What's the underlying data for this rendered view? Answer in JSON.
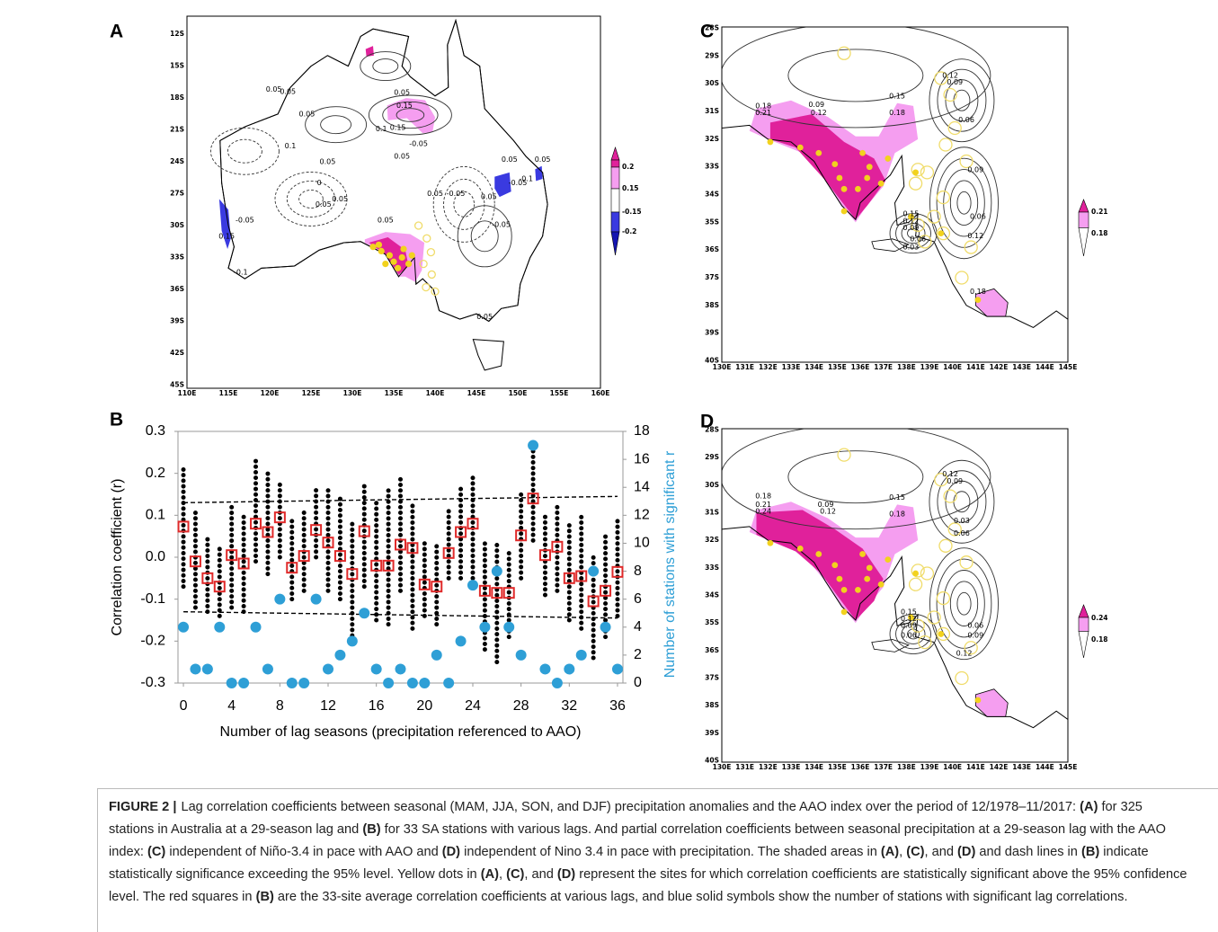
{
  "panel_labels": [
    "A",
    "B",
    "C",
    "D"
  ],
  "map_a": {
    "lat_labels": [
      "12S",
      "15S",
      "18S",
      "21S",
      "24S",
      "27S",
      "30S",
      "33S",
      "36S",
      "39S",
      "42S",
      "45S"
    ],
    "lon_labels": [
      "110E",
      "115E",
      "120E",
      "125E",
      "130E",
      "135E",
      "140E",
      "145E",
      "150E",
      "155E",
      "160E"
    ],
    "colorbar_labels": [
      "0.2",
      "0.15",
      "-0.15",
      "-0.2"
    ],
    "contour_labels": [
      "0.05",
      "0.05",
      "0.05",
      "0.1",
      "0.05",
      "-0.05",
      "0.05",
      "0.05",
      "0.15",
      "0.15",
      "0.1",
      "-0.05",
      "0.05",
      "0.05",
      "-0.05",
      "0.05",
      "0.05",
      "-0.05",
      "-0.1",
      "0.05",
      "0.05",
      "-0.05",
      "0.05",
      "0.15",
      "-0.1",
      "0",
      "0.05"
    ]
  },
  "map_c": {
    "lat_labels": [
      "28S",
      "29S",
      "30S",
      "31S",
      "32S",
      "33S",
      "34S",
      "35S",
      "36S",
      "37S",
      "38S",
      "39S",
      "40S"
    ],
    "lon_labels": [
      "130E",
      "131E",
      "132E",
      "133E",
      "134E",
      "135E",
      "136E",
      "137E",
      "138E",
      "139E",
      "140E",
      "141E",
      "142E",
      "143E",
      "144E",
      "145E"
    ],
    "colorbar_labels": [
      "0.21",
      "0.18"
    ],
    "contour_labels": [
      "0.12",
      "0.09",
      "0.18",
      "0.21",
      "0.09",
      "0.12",
      "0.15",
      "0.18",
      "0.06",
      "0.09",
      "0.15",
      "0.12",
      "0.09",
      "0.06",
      "0.03",
      "0.06",
      "0.12",
      "0.18"
    ]
  },
  "map_d": {
    "lat_labels": [
      "28S",
      "29S",
      "30S",
      "31S",
      "32S",
      "33S",
      "34S",
      "35S",
      "36S",
      "37S",
      "38S",
      "39S",
      "40S"
    ],
    "lon_labels": [
      "130E",
      "131E",
      "132E",
      "133E",
      "134E",
      "135E",
      "136E",
      "137E",
      "138E",
      "139E",
      "140E",
      "141E",
      "142E",
      "143E",
      "144E",
      "145E"
    ],
    "colorbar_labels": [
      "0.24",
      "0.18"
    ],
    "contour_labels": [
      "0.12",
      "0.09",
      "0.18",
      "0.21",
      "0.24",
      "0.09",
      "0.12",
      "0.15",
      "0.18",
      "0.03",
      "0.06",
      "0.15",
      "0.12",
      "0.09",
      "0.06",
      "0.06",
      "0.09",
      "0.12"
    ]
  },
  "chart_data": {
    "type": "scatter",
    "xlabel": "Number of lag seasons (precipitation referenced to AAO)",
    "ylabel": "Correlation coefficient (r)",
    "y2label": "Number of stations with significant  r",
    "x": [
      0,
      1,
      2,
      3,
      4,
      5,
      6,
      7,
      8,
      9,
      10,
      11,
      12,
      13,
      14,
      15,
      16,
      17,
      18,
      19,
      20,
      21,
      22,
      23,
      24,
      25,
      26,
      27,
      28,
      29,
      30,
      31,
      32,
      33,
      34,
      35,
      36
    ],
    "xlim": [
      -0.45,
      36.45
    ],
    "xticks": [
      0,
      4,
      8,
      12,
      16,
      20,
      24,
      28,
      32,
      36
    ],
    "ylim": [
      -0.3,
      0.3
    ],
    "yticks": [
      -0.3,
      -0.2,
      -0.1,
      {
        "value": 0,
        "label": "0.0"
      },
      0.1,
      0.2,
      0.3
    ],
    "y2lim": [
      0,
      18
    ],
    "y2ticks": [
      0,
      2,
      4,
      6,
      8,
      10,
      12,
      14,
      16,
      18
    ],
    "y2label_color": "#2e9fd6",
    "series": [
      {
        "color": "#e02a2a",
        "values": [
          0.073,
          -0.01,
          -0.05,
          -0.07,
          0.005,
          -0.015,
          0.08,
          0.06,
          0.095,
          -0.025,
          0.003,
          0.065,
          0.035,
          0.003,
          -0.04,
          0.062,
          -0.02,
          -0.02,
          0.03,
          0.022,
          -0.065,
          -0.07,
          0.01,
          0.06,
          0.08,
          -0.08,
          -0.085,
          -0.085,
          0.052,
          0.14,
          0.005,
          0.025,
          -0.05,
          -0.045,
          -0.105,
          -0.08,
          -0.035
        ]
      },
      {
        "color": "#2e9fd6",
        "axis": "y2",
        "values": [
          4,
          1,
          1,
          4,
          0,
          0,
          4,
          1,
          6,
          0,
          0,
          6,
          1,
          2,
          3,
          5,
          1,
          0,
          1,
          0,
          0,
          2,
          0,
          3,
          7,
          4,
          8,
          4,
          2,
          17,
          1,
          0,
          1,
          2,
          8,
          4,
          1
        ]
      }
    ],
    "station_range": {
      "color": "#000000",
      "low": [
        -0.07,
        -0.12,
        -0.13,
        -0.14,
        -0.12,
        -0.13,
        -0.01,
        -0.04,
        0.0,
        -0.1,
        -0.08,
        0.0,
        -0.08,
        -0.1,
        -0.2,
        -0.07,
        -0.15,
        -0.16,
        -0.08,
        -0.17,
        -0.14,
        -0.16,
        -0.05,
        -0.05,
        -0.05,
        -0.22,
        -0.25,
        -0.19,
        -0.05,
        0.04,
        -0.09,
        -0.08,
        -0.15,
        -0.17,
        -0.24,
        -0.19,
        -0.14
      ],
      "high": [
        0.21,
        0.11,
        0.05,
        0.03,
        0.13,
        0.1,
        0.23,
        0.2,
        0.18,
        0.09,
        0.11,
        0.16,
        0.17,
        0.14,
        0.09,
        0.18,
        0.14,
        0.16,
        0.19,
        0.13,
        0.04,
        0.03,
        0.12,
        0.17,
        0.19,
        0.04,
        0.03,
        0.01,
        0.16,
        0.27,
        0.1,
        0.13,
        0.08,
        0.1,
        0.01,
        0.06,
        0.09
      ]
    },
    "significance": {
      "x": [
        0,
        36
      ],
      "upper": [
        0.13,
        0.145
      ],
      "lower": [
        -0.13,
        -0.145
      ]
    }
  },
  "caption": {
    "label": "FIGURE 2 |",
    "parts": [
      "Lag correlation coefficients between seasonal (MAM, JJA, SON, and DJF) precipitation anomalies and the AAO index over the period of 12/1978–11/2017: ",
      "(A)",
      " for 325 stations in Australia at a 29-season lag and ",
      "(B)",
      " for 33 SA stations with various lags. And partial correlation coefficients between seasonal precipitation at a 29-season lag with the AAO index: ",
      "(C)",
      " independent of Niño-3.4 in pace with AAO and ",
      "(D)",
      " independent of Nino 3.4 in pace with precipitation. The shaded areas in ",
      "(A)",
      ", ",
      "(C)",
      ", and ",
      "(D)",
      " and dash lines in ",
      "(B)",
      " indicate statistically significance exceeding the 95% level. Yellow dots in ",
      "(A)",
      ", ",
      "(C)",
      ", and ",
      "(D)",
      " represent the sites for which correlation coefficients are statistically significant above the 95% confidence level. The red squares in ",
      "(B)",
      " are the 33-site average correlation coefficients at various lags, and blue solid symbols show the number of stations with significant lag correlations."
    ]
  }
}
